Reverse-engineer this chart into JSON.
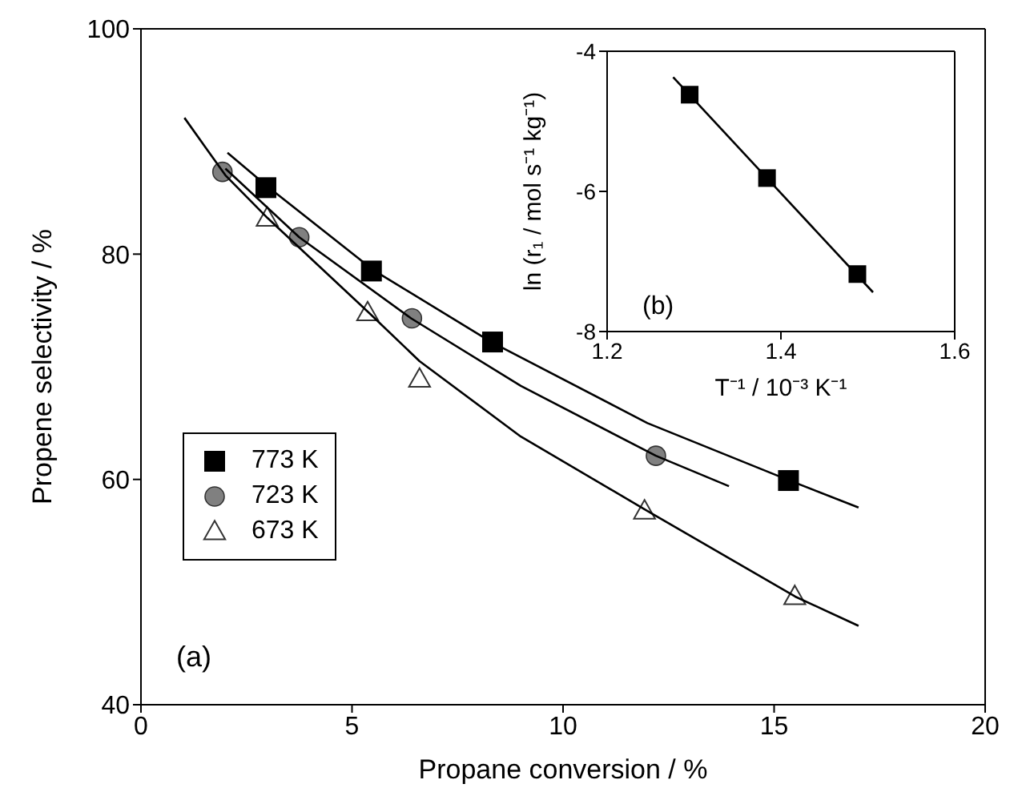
{
  "chart_data": [
    {
      "type": "scatter",
      "xlabel": "Propane conversion / %",
      "ylabel": "Propene selectivity / %",
      "xlim": [
        0,
        20
      ],
      "xticks": [
        0,
        5,
        10,
        15,
        20
      ],
      "ylim": [
        40,
        100
      ],
      "yticks": [
        40,
        60,
        80,
        100
      ],
      "legend": "bottom left",
      "annotations": [
        "(a)"
      ],
      "series": [
        {
          "name": "773 K",
          "color": "#000000",
          "marker": "square",
          "x": [
            2.96,
            5.46,
            8.33,
            15.34
          ],
          "values": [
            85.9,
            78.5,
            72.2,
            59.9
          ]
        },
        {
          "name": "723 K",
          "color": "#808080",
          "marker": "circle",
          "x": [
            1.93,
            3.75,
            6.42,
            12.2
          ],
          "values": [
            87.3,
            81.5,
            74.3,
            62.1
          ]
        },
        {
          "name": "673 K",
          "color": "#ffffff",
          "marker": "triangle",
          "x": [
            2.99,
            5.37,
            6.6,
            11.93,
            15.49
          ],
          "values": [
            83.2,
            74.8,
            68.9,
            57.2,
            49.6
          ]
        },
        {
          "type": "line",
          "color": "#000000",
          "marker": "none",
          "x": [
            2.05,
            3,
            5.5,
            8.3,
            12,
            15.3,
            17
          ],
          "values": [
            89.0,
            86.0,
            78.6,
            72.2,
            65.0,
            60.0,
            57.5
          ]
        },
        {
          "type": "line",
          "color": "#000000",
          "marker": "none",
          "x": [
            2.0,
            3.75,
            6.4,
            9,
            12.2,
            13.93
          ],
          "values": [
            87.6,
            81.5,
            74.3,
            68.3,
            62.1,
            59.4
          ]
        },
        {
          "type": "line",
          "color": "#000000",
          "marker": "none",
          "x": [
            1.03,
            2,
            3,
            5.4,
            6.6,
            9,
            12,
            15.5,
            17
          ],
          "values": [
            92.1,
            87.0,
            83.2,
            74.8,
            70.5,
            63.8,
            57.2,
            49.6,
            47.0
          ]
        }
      ]
    },
    {
      "type": "scatter",
      "xlabel": "T⁻¹ / 10⁻³ K⁻¹",
      "ylabel": "ln (r₁ / mol s⁻¹ kg⁻¹)",
      "xlim": [
        1.2,
        1.6
      ],
      "xticks": [
        1.2,
        1.4,
        1.6
      ],
      "ylim": [
        -8,
        -4
      ],
      "yticks": [
        -8,
        -6,
        -4
      ],
      "annotations": [
        "(b)"
      ],
      "series": [
        {
          "color": "#000000",
          "marker": "square",
          "x": [
            1.295,
            1.384,
            1.488
          ],
          "values": [
            -4.62,
            -5.81,
            -7.18
          ]
        },
        {
          "type": "line",
          "color": "#000000",
          "marker": "none",
          "x": [
            1.276,
            1.506
          ],
          "values": [
            -4.37,
            -7.44
          ]
        }
      ]
    }
  ]
}
